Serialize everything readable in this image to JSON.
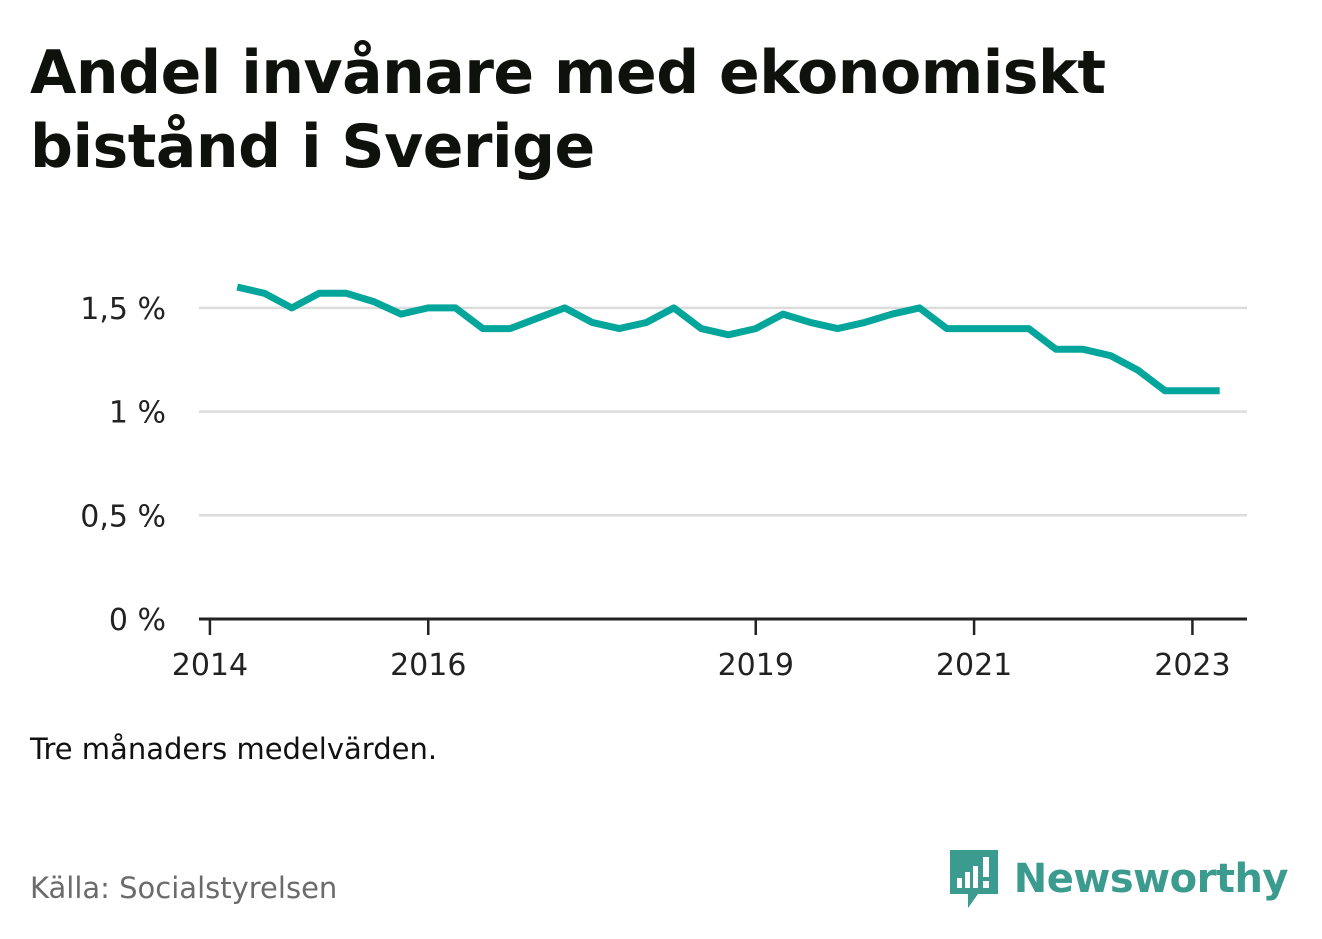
{
  "title": "Andel invånare med ekonomiskt bistånd i Sverige",
  "note": "Tre månaders medelvärden.",
  "source": "Källa: Socialstyrelsen",
  "brand": {
    "name": "Newsworthy",
    "icon": "newsworthy-logo-icon",
    "color": "#3a9b8e"
  },
  "chart_data": {
    "type": "line",
    "title": "Andel invånare med ekonomiskt bistånd i Sverige",
    "xlabel": "",
    "ylabel": "",
    "ylim": [
      0,
      1.75
    ],
    "yticks": [
      0,
      0.5,
      1,
      1.5
    ],
    "ytick_labels": [
      "0 %",
      "0,5 %",
      "1 %",
      "1,5 %"
    ],
    "xlim": [
      2013.9,
      2023.5
    ],
    "xticks": [
      2014,
      2016,
      2019,
      2021,
      2023
    ],
    "xtick_labels": [
      "2014",
      "2016",
      "2019",
      "2021",
      "2023"
    ],
    "grid": true,
    "line_color": "#04a69b",
    "series": [
      {
        "x": [
          2014.25,
          2014.5,
          2014.75,
          2015.0,
          2015.25,
          2015.5,
          2015.75,
          2016.0,
          2016.25,
          2016.5,
          2016.75,
          2017.0,
          2017.25,
          2017.5,
          2017.75,
          2018.0,
          2018.25,
          2018.5,
          2018.75,
          2019.0,
          2019.25,
          2019.5,
          2019.75,
          2020.0,
          2020.25,
          2020.5,
          2020.75,
          2021.0,
          2021.25,
          2021.5,
          2021.75,
          2022.0,
          2022.25,
          2022.5,
          2022.75,
          2023.0,
          2023.25
        ],
        "values": [
          1.6,
          1.57,
          1.5,
          1.57,
          1.57,
          1.53,
          1.47,
          1.5,
          1.5,
          1.4,
          1.4,
          1.45,
          1.5,
          1.43,
          1.4,
          1.43,
          1.5,
          1.4,
          1.37,
          1.4,
          1.47,
          1.43,
          1.4,
          1.43,
          1.47,
          1.5,
          1.4,
          1.4,
          1.4,
          1.4,
          1.3,
          1.3,
          1.27,
          1.2,
          1.1,
          1.1,
          1.1
        ]
      }
    ]
  }
}
